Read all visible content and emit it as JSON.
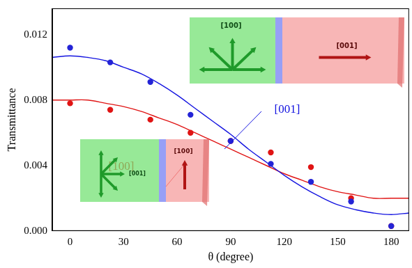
{
  "chart_data": {
    "type": "scatter",
    "x_label": "θ (degree)",
    "y_label": "Transmittance",
    "xlim": [
      -10,
      190
    ],
    "xticks": [
      0,
      30,
      60,
      90,
      120,
      150,
      180
    ],
    "ylim": [
      0,
      0.0136
    ],
    "yticks": [
      {
        "value": 0,
        "label": "0.000"
      },
      {
        "value": 0.004,
        "label": "0.004"
      },
      {
        "value": 0.008,
        "label": "0.008"
      },
      {
        "value": 0.012,
        "label": "0.012"
      }
    ],
    "grid": false,
    "series": [
      {
        "color": "#2424d6",
        "type": "scatter",
        "marker": "circle",
        "x": [
          0,
          22.5,
          45,
          67.5,
          90,
          112.5,
          135,
          157.5,
          180
        ],
        "values": [
          0.0112,
          0.0103,
          0.0091,
          0.0071,
          0.0055,
          0.0041,
          0.003,
          0.0018,
          0.0003
        ]
      },
      {
        "color": "#e01414",
        "type": "scatter",
        "marker": "circle",
        "x": [
          0,
          22.5,
          45,
          67.5,
          90,
          112.5,
          135,
          157.5,
          180
        ],
        "values": [
          0.0078,
          0.0074,
          0.0068,
          0.006,
          0.0055,
          0.0048,
          0.0039,
          0.002,
          0.0003
        ]
      },
      {
        "name": "[001]",
        "color": "#1414e0",
        "type": "line",
        "line_style": "solid",
        "x": [
          -10,
          0,
          10,
          20,
          30,
          40,
          50,
          60,
          70,
          80,
          90,
          100,
          110,
          120,
          130,
          140,
          150,
          160,
          170,
          180,
          190
        ],
        "values": [
          0.0106,
          0.0107,
          0.0106,
          0.0104,
          0.01,
          0.0096,
          0.009,
          0.0083,
          0.0075,
          0.0067,
          0.0059,
          0.005,
          0.0042,
          0.0034,
          0.0027,
          0.0021,
          0.0016,
          0.0013,
          0.0011,
          0.001,
          0.0011
        ]
      },
      {
        "name": "[100]",
        "color": "#e01414",
        "type": "line",
        "line_style": "solid",
        "x": [
          -10,
          0,
          10,
          20,
          30,
          40,
          50,
          60,
          70,
          80,
          90,
          100,
          110,
          120,
          130,
          140,
          150,
          160,
          170,
          180,
          190
        ],
        "values": [
          0.008,
          0.008,
          0.008,
          0.0078,
          0.0076,
          0.0073,
          0.0069,
          0.0065,
          0.006,
          0.0055,
          0.005,
          0.0045,
          0.004,
          0.0035,
          0.0031,
          0.0027,
          0.0024,
          0.0022,
          0.002,
          0.002,
          0.002
        ]
      }
    ],
    "insets": [
      {
        "left_label": "[100]",
        "right_label": "[001]"
      },
      {
        "left_label": "[001]",
        "right_label": "[100]"
      }
    ]
  }
}
